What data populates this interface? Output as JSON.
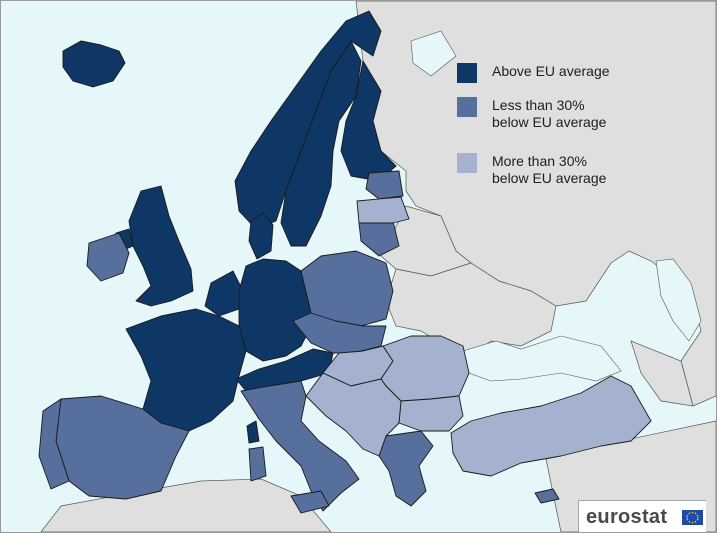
{
  "legend": {
    "items": [
      {
        "label": "Above EU average",
        "color": "#0f3766"
      },
      {
        "label": "Less than 30%\nbelow EU average",
        "color": "#566f9c"
      },
      {
        "label": "More than 30%\nbelow EU average",
        "color": "#a4b2cf"
      }
    ]
  },
  "colors": {
    "sea": "#e6f7f9",
    "non_eu_land": "#dfdfdf",
    "above": "#0f3766",
    "less30": "#566f9c",
    "more30": "#a4b2cf",
    "logo_blue": "#1f4aa8",
    "logo_star": "#ffd700"
  },
  "logo": {
    "text": "eurostat",
    "icon": "eu-flag-icon"
  },
  "map_data": {
    "above_eu_average": [
      "Iceland",
      "Norway",
      "Sweden",
      "Finland",
      "Denmark",
      "United Kingdom",
      "Netherlands",
      "Belgium",
      "Luxembourg",
      "France",
      "Germany",
      "Austria",
      "Switzerland"
    ],
    "less_than_30_below": [
      "Ireland",
      "Spain",
      "Portugal",
      "Italy",
      "Malta",
      "Poland",
      "Czech Republic",
      "Slovakia",
      "Slovenia",
      "Estonia",
      "Lithuania",
      "Greece",
      "Cyprus"
    ],
    "more_than_30_below": [
      "Latvia",
      "Hungary",
      "Romania",
      "Bulgaria",
      "Croatia",
      "Bosnia and Herzegovina",
      "Serbia",
      "Montenegro",
      "Albania",
      "North Macedonia",
      "Turkey"
    ]
  }
}
